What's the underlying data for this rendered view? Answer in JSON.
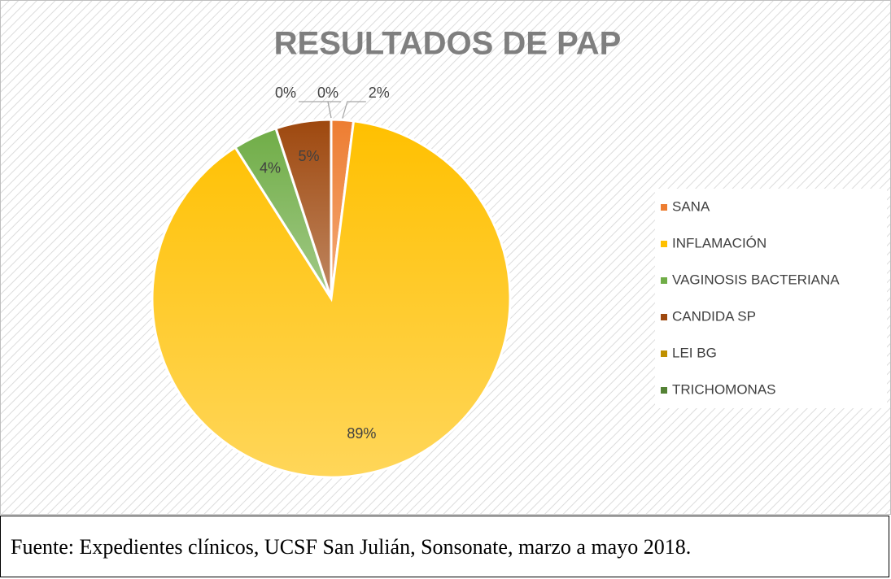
{
  "chart_data": {
    "type": "pie",
    "title": "RESULTADOS DE PAP",
    "categories": [
      "SANA",
      "INFLAMACIÓN",
      "VAGINOSIS BACTERIANA",
      "CANDIDA SP",
      "LEI BG",
      "TRICHOMONAS"
    ],
    "values": [
      2,
      89,
      4,
      5,
      0,
      0
    ],
    "value_labels": [
      "2%",
      "89%",
      "4%",
      "5%",
      "0%",
      "0%"
    ],
    "colors": [
      "#ed7d31",
      "#ffc000",
      "#70ad47",
      "#9e480e",
      "#bf9000",
      "#548235"
    ],
    "legend": "right",
    "source": "Fuente: Expedientes clínicos, UCSF San Julián, Sonsonate, marzo a mayo 2018."
  }
}
